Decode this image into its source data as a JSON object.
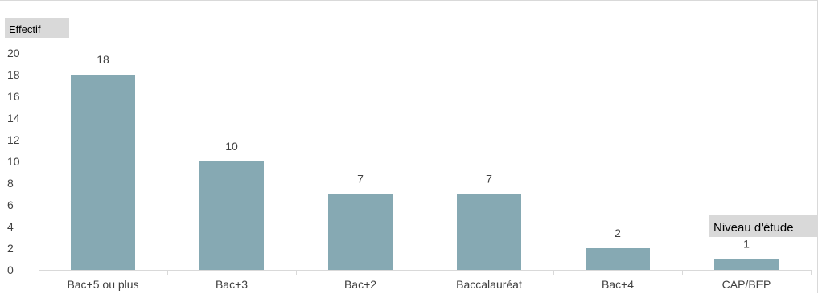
{
  "chart_data": {
    "type": "bar",
    "categories": [
      "Bac+5 ou plus",
      "Bac+3",
      "Bac+2",
      "Baccalauréat",
      "Bac+4",
      "CAP/BEP"
    ],
    "values": [
      18,
      10,
      7,
      7,
      2,
      1
    ],
    "data_labels": [
      "18",
      "10",
      "7",
      "7",
      "2",
      "1"
    ],
    "ylabel": "Effectif",
    "xlabel": "Niveau d'étude",
    "ylim": [
      0,
      20
    ],
    "yticks": [
      0,
      2,
      4,
      6,
      8,
      10,
      12,
      14,
      16,
      18,
      20
    ],
    "ytick_labels": [
      "0",
      "2",
      "4",
      "6",
      "8",
      "10",
      "12",
      "14",
      "16",
      "18",
      "20"
    ],
    "grid": false,
    "legend": "none",
    "bar_color": "#86a9b3",
    "axis_title_background": "#d9d9d9",
    "axis_color": "#d9d9d9"
  }
}
